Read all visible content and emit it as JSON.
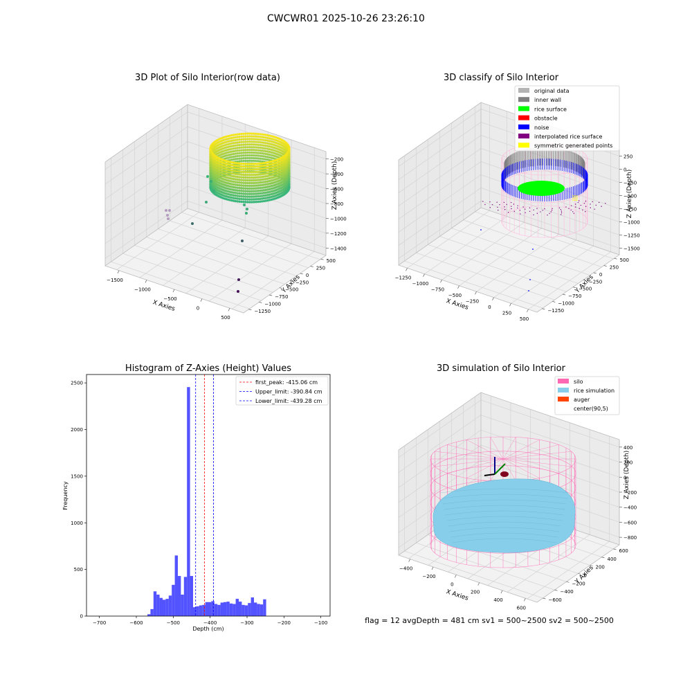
{
  "figure": {
    "suptitle": "CWCWR01 2025-10-26 23:26:10",
    "status": "flag = 12   avgDepth = 481 cm  sv1 = 500~2500  sv2 = 500~2500"
  },
  "colors": {
    "hist_bar": "#4a4aff",
    "peak_line": "#ff0000",
    "limit_line": "#0000ff",
    "raw_top": "#f5e51b",
    "raw_bottom": "#3bb67a",
    "original": "#b4b4b4",
    "inner_wall": "#808080",
    "rice_surface": "#00ff00",
    "obstacle": "#ff0000",
    "noise": "#0000ff",
    "interpolated": "#800080",
    "symmetric": "#ffff00",
    "silo": "#ff69b4",
    "rice_sim": "#87ceeb",
    "auger": "#ff4500",
    "center": "#ffffff"
  },
  "chart_data": [
    {
      "type": "scatter3d",
      "title": "3D Plot of Silo Interior(row data)",
      "xlabel": "X Axies",
      "ylabel": "Y Axies",
      "zlabel": "Z Axies (Depth)",
      "xticks": [
        "−1500",
        "−1000",
        "−500",
        "0",
        "500"
      ],
      "yticks": [
        "500",
        "250",
        "0",
        "−250",
        "−500",
        "−750",
        "−1000",
        "−1250"
      ],
      "zticks": [
        "−200",
        "−400",
        "−600",
        "−800",
        "−1000",
        "−1200",
        "−1400"
      ]
    },
    {
      "type": "scatter3d",
      "title": "3D classify of Silo Interior",
      "xlabel": "X Axies",
      "ylabel": "Y Axies",
      "zlabel": "Z Axies (Depth)",
      "xticks": [
        "−1250",
        "−1000",
        "−750",
        "−500",
        "−250",
        "0",
        "250",
        "500"
      ],
      "yticks": [
        "500",
        "250",
        "0",
        "−250",
        "−500",
        "−750",
        "−1000",
        "−1250"
      ],
      "zticks": [
        "250",
        "0",
        "−250",
        "−500",
        "−750",
        "−1000",
        "−1250",
        "−1500"
      ],
      "legend": [
        {
          "label": "original data",
          "color_key": "original"
        },
        {
          "label": "inner wall",
          "color_key": "inner_wall"
        },
        {
          "label": "rice surface",
          "color_key": "rice_surface"
        },
        {
          "label": "obstacle",
          "color_key": "obstacle"
        },
        {
          "label": "noise",
          "color_key": "noise"
        },
        {
          "label": "interpolated rice surface",
          "color_key": "interpolated"
        },
        {
          "label": "symmetric generated points",
          "color_key": "symmetric"
        }
      ],
      "legend_location": "upper right"
    },
    {
      "type": "bar",
      "title": "Histogram of Z-Axies (Height) Values",
      "xlabel": "Depth (cm)",
      "ylabel": "Frequency",
      "xlim": [
        -735,
        -75
      ],
      "ylim": [
        0,
        2590
      ],
      "xticks": [
        -700,
        -600,
        -500,
        -400,
        -300,
        -200,
        -100
      ],
      "xticklabels": [
        "−700",
        "−600",
        "−500",
        "−400",
        "−300",
        "−200",
        "−100"
      ],
      "yticks": [
        0,
        500,
        1000,
        1500,
        2000,
        2500
      ],
      "bin_start": -570,
      "bin_width": 8.25,
      "values": [
        20,
        75,
        265,
        230,
        195,
        175,
        185,
        220,
        335,
        650,
        430,
        230,
        420,
        2455,
        430,
        95,
        105,
        115,
        120,
        150,
        150,
        160,
        130,
        120,
        145,
        150,
        155,
        135,
        130,
        185,
        155,
        120,
        115,
        140,
        200,
        145,
        130,
        125,
        180
      ],
      "vlines": [
        {
          "label": "first_peak: -415.06 cm",
          "x": -415.06,
          "color_key": "peak_line"
        },
        {
          "label": "Upper_limit: -390.84 cm",
          "x": -390.84,
          "color_key": "limit_line"
        },
        {
          "label": "Lower_limit: -439.28 cm",
          "x": -439.28,
          "color_key": "limit_line"
        }
      ],
      "legend_location": "upper right"
    },
    {
      "type": "surface3d",
      "title": "3D simulation of Silo Interior",
      "xlabel": "X Axies",
      "ylabel": "Y Axies",
      "zlabel": "Z Axies (Depth)",
      "xticks": [
        "−400",
        "−200",
        "0",
        "200",
        "400",
        "600"
      ],
      "yticks": [
        "600",
        "400",
        "200",
        "0",
        "−200",
        "−400",
        "−600"
      ],
      "zticks": [
        "400",
        "200",
        "0",
        "−200",
        "−400",
        "−600",
        "−800"
      ],
      "legend": [
        {
          "label": "silo",
          "color_key": "silo"
        },
        {
          "label": "rice simulation",
          "color_key": "rice_sim"
        },
        {
          "label": "auger",
          "color_key": "auger"
        },
        {
          "label": "center(90,5)",
          "color_key": "center"
        }
      ],
      "legend_location": "upper right"
    }
  ]
}
